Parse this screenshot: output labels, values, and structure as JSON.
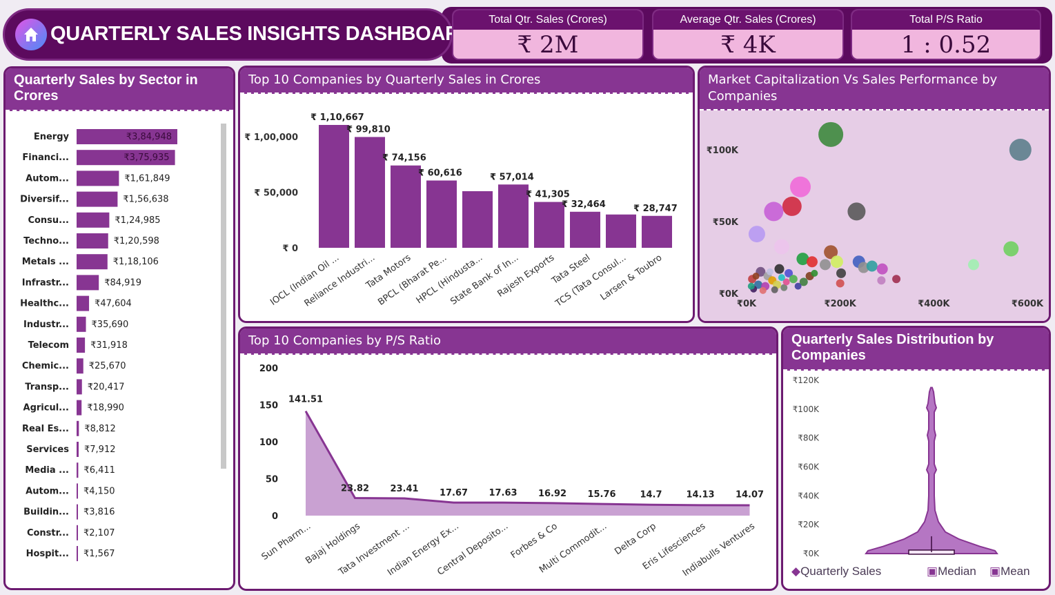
{
  "header": {
    "title": "QUARTERLY SALES INSIGHTS DASHBOARD"
  },
  "kpis": [
    {
      "label": "Total Qtr. Sales (Crores)",
      "value": "₹ 2M"
    },
    {
      "label": "Average Qtr. Sales (Crores)",
      "value": "₹ 4K"
    },
    {
      "label": "Total P/S Ratio",
      "value": "1 : 0.52"
    }
  ],
  "colors": {
    "header": "#5c0a5e",
    "accent": "#873592",
    "bar": "#873592",
    "kpi_bg": "#f1b6de",
    "scatter_bg": "#e6cde6",
    "area_fill": "#c9a1d2"
  },
  "chart_data": [
    {
      "id": "sector",
      "type": "bar",
      "orientation": "horizontal",
      "title": "Quarterly Sales by Sector in Crores",
      "categories": [
        "Energy",
        "Financi...",
        "Autom...",
        "Diversif...",
        "Consu...",
        "Techno...",
        "Metals ...",
        "Infrastr...",
        "Healthc...",
        "Industr...",
        "Telecom",
        "Chemic...",
        "Transp...",
        "Agricul...",
        "Real Es...",
        "Services",
        "Media ...",
        "Autom...",
        "Buildin...",
        "Constr...",
        "Hospit..."
      ],
      "values": [
        384948,
        375935,
        161849,
        156638,
        124985,
        120598,
        118106,
        84919,
        47604,
        35690,
        31918,
        25670,
        20417,
        18990,
        8812,
        7912,
        6411,
        4150,
        3816,
        2107,
        1567
      ],
      "labels": [
        "₹3,84,948",
        "₹3,75,935",
        "₹1,61,849",
        "₹1,56,638",
        "₹1,24,985",
        "₹1,20,598",
        "₹1,18,106",
        "₹84,919",
        "₹47,604",
        "₹35,690",
        "₹31,918",
        "₹25,670",
        "₹20,417",
        "₹18,990",
        "₹8,812",
        "₹7,912",
        "₹6,411",
        "₹4,150",
        "₹3,816",
        "₹2,107",
        "₹1,567"
      ]
    },
    {
      "id": "top10",
      "type": "bar",
      "title": "Top 10 Companies by Quarterly Sales in Crores",
      "categories": [
        "IOCL (Indian Oil ...",
        "Reliance Industri...",
        "Tata Motors",
        "BPCL (Bharat Pe...",
        "HPCL (Hindusta...",
        "State Bank of In...",
        "Rajesh Exports",
        "Tata Steel",
        "TCS (Tata Consul...",
        "Larsen & Toubro"
      ],
      "values": [
        110667,
        99810,
        74156,
        60616,
        51000,
        57014,
        41305,
        32464,
        30000,
        28747
      ],
      "labels": [
        "₹ 1,10,667",
        "₹ 99,810",
        "₹ 74,156",
        "₹ 60,616",
        "",
        "₹ 57,014",
        "₹ 41,305",
        "₹ 32,464",
        "",
        "₹ 28,747"
      ],
      "yticks": [
        "₹ 0",
        "₹ 50,000",
        "₹ 1,00,000"
      ],
      "ylim": [
        0,
        110667
      ]
    },
    {
      "id": "mcap",
      "type": "scatter",
      "title": "Market Capitalization Vs Sales Performance by Companies",
      "xticks": [
        "₹0K",
        "₹200K",
        "₹400K",
        "₹600K"
      ],
      "yticks": [
        "₹0K",
        "₹50K",
        "₹100K"
      ],
      "xlim": [
        0,
        600000
      ],
      "ylim": [
        0,
        100000
      ],
      "points": [
        {
          "x": 180000,
          "y": 110667,
          "r": 18,
          "c": "#3d8a3d"
        },
        {
          "x": 585000,
          "y": 100000,
          "r": 16,
          "c": "#5d7f8c"
        },
        {
          "x": 115000,
          "y": 74156,
          "r": 15,
          "c": "#f06ad8"
        },
        {
          "x": 97000,
          "y": 60616,
          "r": 14,
          "c": "#cf2a40"
        },
        {
          "x": 58000,
          "y": 57014,
          "r": 14,
          "c": "#c660d6"
        },
        {
          "x": 235000,
          "y": 57014,
          "r": 13,
          "c": "#5a5a5a"
        },
        {
          "x": 22000,
          "y": 41305,
          "r": 12,
          "c": "#b79af2"
        },
        {
          "x": 75000,
          "y": 32464,
          "r": 11,
          "c": "#ecc4ec"
        },
        {
          "x": 180000,
          "y": 28747,
          "r": 10,
          "c": "#a0522d"
        },
        {
          "x": 565000,
          "y": 31000,
          "r": 11,
          "c": "#70d060"
        },
        {
          "x": 120000,
          "y": 24000,
          "r": 9,
          "c": "#20a040"
        },
        {
          "x": 140000,
          "y": 22000,
          "r": 8,
          "c": "#e03030"
        },
        {
          "x": 168000,
          "y": 20000,
          "r": 8,
          "c": "#909090"
        },
        {
          "x": 193000,
          "y": 22000,
          "r": 9,
          "c": "#d0f060"
        },
        {
          "x": 240000,
          "y": 22000,
          "r": 9,
          "c": "#4060c0"
        },
        {
          "x": 250000,
          "y": 18000,
          "r": 8,
          "c": "#909090"
        },
        {
          "x": 268000,
          "y": 19000,
          "r": 8,
          "c": "#30a0a0"
        },
        {
          "x": 290000,
          "y": 17000,
          "r": 8,
          "c": "#c050c0"
        },
        {
          "x": 485000,
          "y": 20000,
          "r": 8,
          "c": "#a0f0b0"
        },
        {
          "x": 202000,
          "y": 14000,
          "r": 7,
          "c": "#404040"
        },
        {
          "x": 200000,
          "y": 7000,
          "r": 6,
          "c": "#d05050"
        },
        {
          "x": 288000,
          "y": 9000,
          "r": 6,
          "c": "#c080c0"
        },
        {
          "x": 320000,
          "y": 10000,
          "r": 6,
          "c": "#a03050"
        },
        {
          "x": 135000,
          "y": 12000,
          "r": 6,
          "c": "#804020"
        },
        {
          "x": 122000,
          "y": 8000,
          "r": 6,
          "c": "#408040"
        },
        {
          "x": 70000,
          "y": 17000,
          "r": 7,
          "c": "#303030"
        },
        {
          "x": 30000,
          "y": 15000,
          "r": 7,
          "c": "#705080"
        },
        {
          "x": 45000,
          "y": 12000,
          "r": 6,
          "c": "#a0a0a0"
        },
        {
          "x": 55000,
          "y": 9000,
          "r": 6,
          "c": "#e0a000"
        },
        {
          "x": 90000,
          "y": 14000,
          "r": 6,
          "c": "#5050d0"
        },
        {
          "x": 100000,
          "y": 10000,
          "r": 6,
          "c": "#50b050"
        },
        {
          "x": 12000,
          "y": 10000,
          "r": 6,
          "c": "#c04040"
        },
        {
          "x": 25000,
          "y": 6000,
          "r": 6,
          "c": "#3070a0"
        },
        {
          "x": 40000,
          "y": 5000,
          "r": 6,
          "c": "#b040b0"
        },
        {
          "x": 65000,
          "y": 6000,
          "r": 6,
          "c": "#d0d050"
        },
        {
          "x": 80000,
          "y": 4000,
          "r": 5,
          "c": "#708070"
        },
        {
          "x": 15000,
          "y": 3000,
          "r": 5,
          "c": "#402060"
        },
        {
          "x": 35000,
          "y": 2000,
          "r": 5,
          "c": "#e07070"
        },
        {
          "x": 60000,
          "y": 2500,
          "r": 5,
          "c": "#606060"
        },
        {
          "x": 10000,
          "y": 5000,
          "r": 5,
          "c": "#20a080"
        },
        {
          "x": 50000,
          "y": 15000,
          "r": 5,
          "c": "#c0c0e0"
        },
        {
          "x": 85000,
          "y": 8000,
          "r": 5,
          "c": "#e05090"
        },
        {
          "x": 110000,
          "y": 5000,
          "r": 5,
          "c": "#4040a0"
        },
        {
          "x": 145000,
          "y": 14000,
          "r": 5,
          "c": "#309030"
        },
        {
          "x": 20000,
          "y": 12000,
          "r": 5,
          "c": "#904020"
        },
        {
          "x": 75000,
          "y": 11000,
          "r": 5,
          "c": "#20c0c0"
        }
      ]
    },
    {
      "id": "ps",
      "type": "area",
      "title": "Top 10 Companies by P/S Ratio",
      "categories": [
        "Sun Pharm...",
        "Bajaj Holdings",
        "Tata Investment ...",
        "Indian Energy Ex...",
        "Central Deposito...",
        "Forbes & Co",
        "Multi Commodit...",
        "Delta Corp",
        "Eris Lifesciences",
        "Indiabulls Ventures"
      ],
      "values": [
        141.51,
        23.82,
        23.41,
        17.67,
        17.63,
        16.92,
        15.76,
        14.7,
        14.13,
        14.07
      ],
      "labels": [
        "141.51",
        "23.82",
        "23.41",
        "17.67",
        "17.63",
        "16.92",
        "15.76",
        "14.7",
        "14.13",
        "14.07"
      ],
      "yticks": [
        "0",
        "50",
        "100",
        "150",
        "200"
      ],
      "ylim": [
        0,
        200
      ]
    },
    {
      "id": "violin",
      "type": "violin",
      "title": "Quarterly Sales Distribution by Companies",
      "yticks": [
        "₹0K",
        "₹20K",
        "₹40K",
        "₹60K",
        "₹80K",
        "₹100K",
        "₹120K"
      ],
      "ylim": [
        0,
        120000
      ],
      "legend": [
        "Quarterly Sales",
        "Median",
        "Mean"
      ]
    }
  ]
}
